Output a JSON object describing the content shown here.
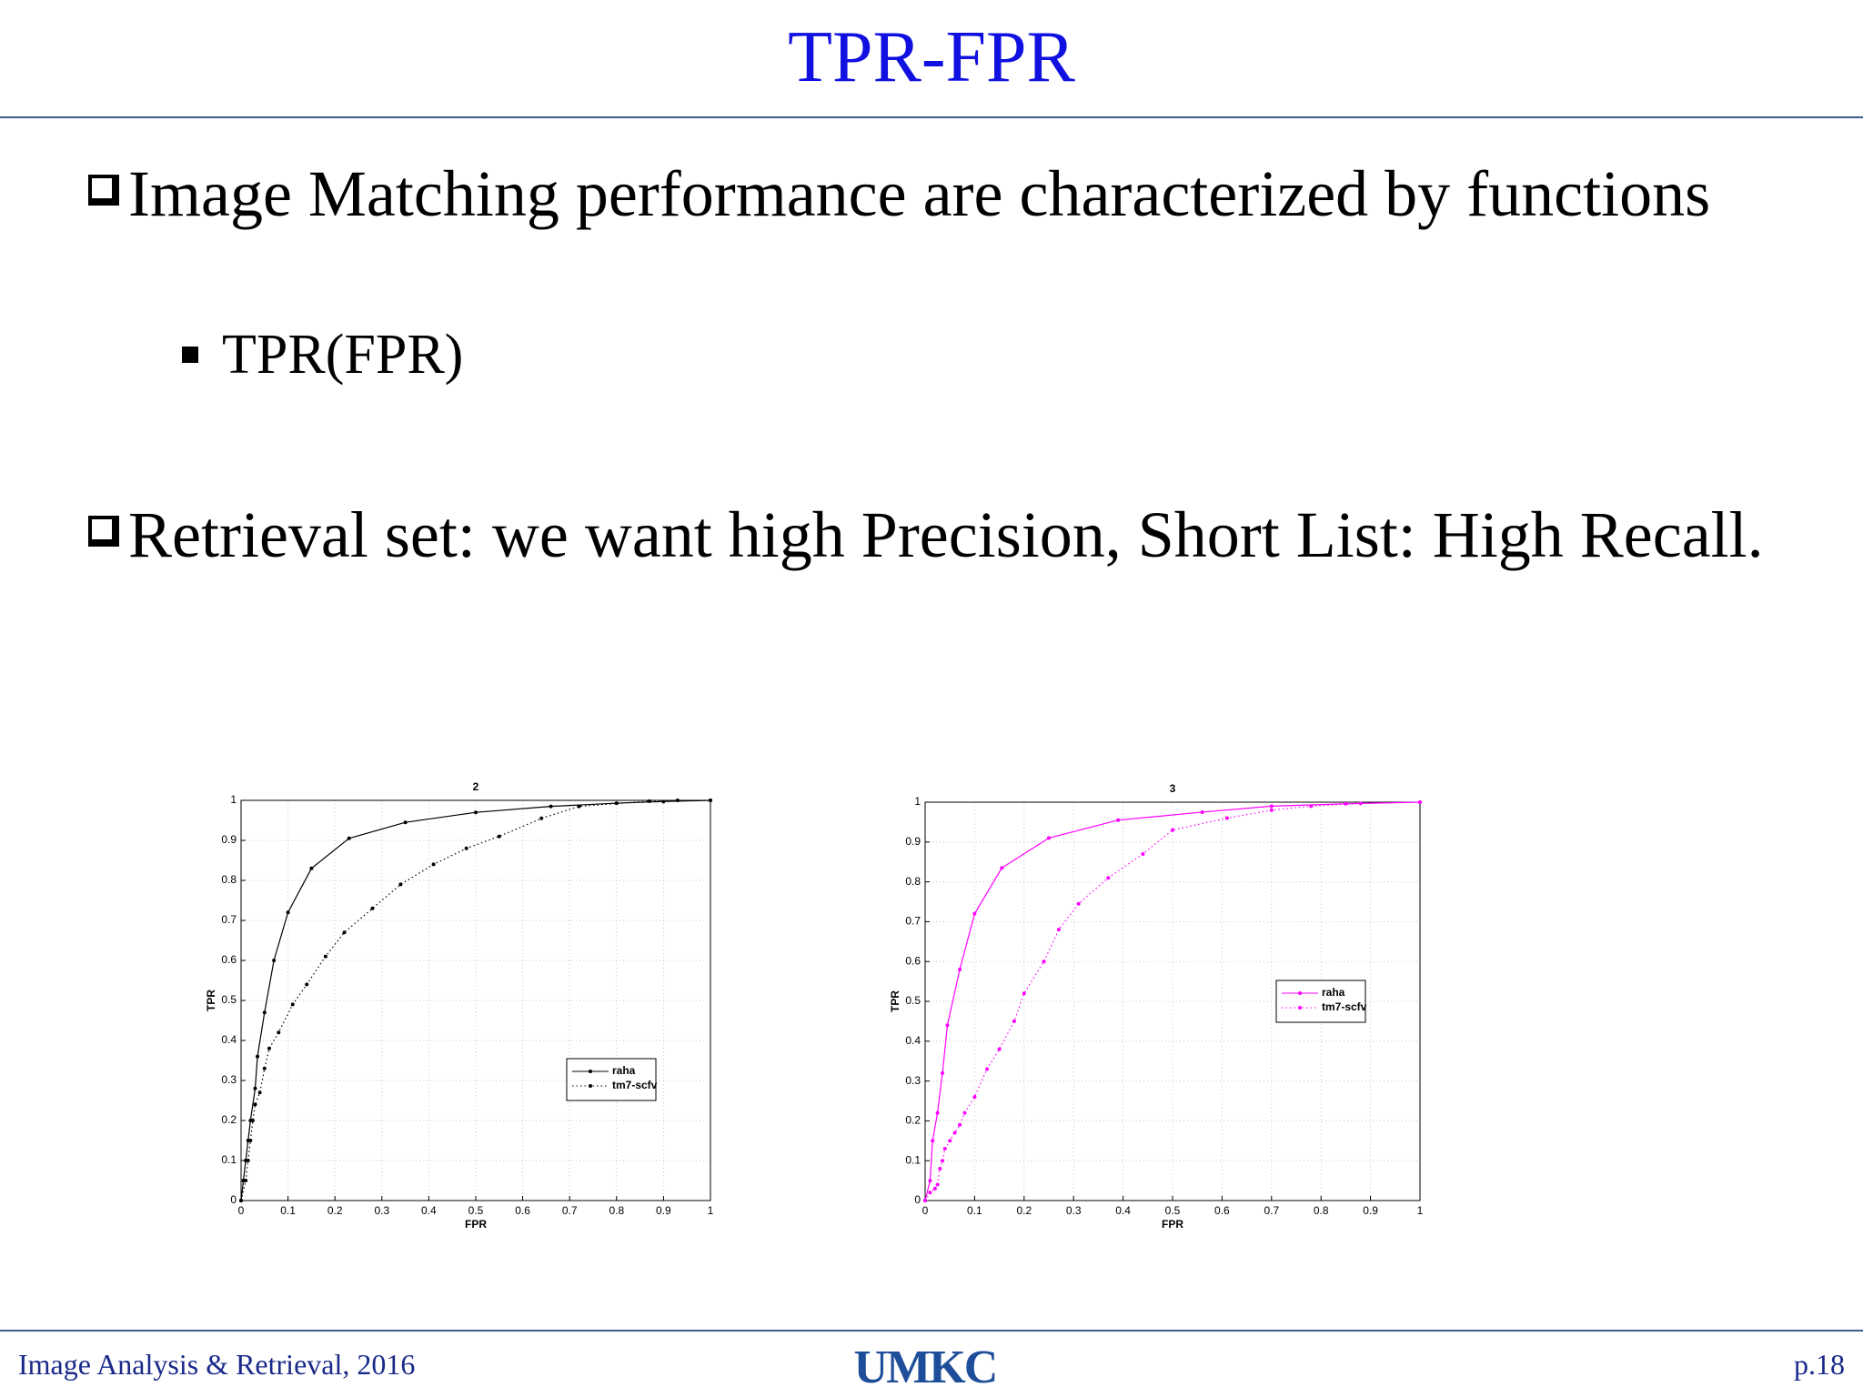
{
  "slide": {
    "title": "TPR-FPR",
    "bullets": [
      {
        "text": "Image Matching performance are characterized by functions",
        "sub": [
          "TPR(FPR)"
        ]
      },
      {
        "text": "Retrieval set: we want high Precision, Short List: High Recall."
      }
    ]
  },
  "footer": {
    "left": "Image Analysis & Retrieval, 2016",
    "logo": "UMKC",
    "page": "p.18"
  },
  "chart_data": [
    {
      "type": "line",
      "title": "2",
      "x_label": "FPR",
      "y_label": "TPR",
      "xlim": [
        0,
        1
      ],
      "ylim": [
        0,
        1
      ],
      "xticks": [
        0,
        0.1,
        0.2,
        0.3,
        0.4,
        0.5,
        0.6,
        0.7,
        0.8,
        0.9,
        1
      ],
      "yticks": [
        0,
        0.1,
        0.2,
        0.3,
        0.4,
        0.5,
        0.6,
        0.7,
        0.8,
        0.9,
        1
      ],
      "grid": true,
      "legend": "lower right",
      "series": [
        {
          "name": "raha",
          "color": "#000000",
          "linestyle": "solid",
          "x": [
            0,
            0.005,
            0.01,
            0.015,
            0.02,
            0.03,
            0.035,
            0.05,
            0.07,
            0.1,
            0.15,
            0.23,
            0.35,
            0.5,
            0.66,
            0.8,
            0.9,
            1
          ],
          "values": [
            0,
            0.05,
            0.1,
            0.15,
            0.2,
            0.28,
            0.36,
            0.47,
            0.6,
            0.72,
            0.83,
            0.905,
            0.945,
            0.97,
            0.985,
            0.993,
            0.997,
            1
          ]
        },
        {
          "name": "tm7-scfv",
          "color": "#000000",
          "linestyle": "dotted",
          "x": [
            0,
            0.01,
            0.015,
            0.02,
            0.025,
            0.03,
            0.04,
            0.05,
            0.06,
            0.08,
            0.11,
            0.14,
            0.18,
            0.22,
            0.28,
            0.34,
            0.41,
            0.48,
            0.55,
            0.64,
            0.72,
            0.87,
            0.93,
            1
          ],
          "values": [
            0,
            0.05,
            0.1,
            0.15,
            0.2,
            0.24,
            0.27,
            0.33,
            0.38,
            0.42,
            0.49,
            0.54,
            0.61,
            0.67,
            0.73,
            0.79,
            0.84,
            0.88,
            0.91,
            0.955,
            0.985,
            0.998,
            1,
            1
          ]
        }
      ]
    },
    {
      "type": "line",
      "title": "3",
      "x_label": "FPR",
      "y_label": "TPR",
      "xlim": [
        0,
        1
      ],
      "ylim": [
        0,
        1
      ],
      "xticks": [
        0,
        0.1,
        0.2,
        0.3,
        0.4,
        0.5,
        0.6,
        0.7,
        0.8,
        0.9,
        1
      ],
      "yticks": [
        0,
        0.1,
        0.2,
        0.3,
        0.4,
        0.5,
        0.6,
        0.7,
        0.8,
        0.9,
        1
      ],
      "grid": true,
      "legend": "center right",
      "series": [
        {
          "name": "raha",
          "color": "#ff00ff",
          "linestyle": "solid",
          "x": [
            0,
            0.01,
            0.015,
            0.025,
            0.035,
            0.045,
            0.07,
            0.1,
            0.155,
            0.25,
            0.39,
            0.56,
            0.7,
            0.85,
            1
          ],
          "values": [
            0,
            0.05,
            0.15,
            0.22,
            0.32,
            0.44,
            0.58,
            0.72,
            0.835,
            0.91,
            0.955,
            0.975,
            0.99,
            0.996,
            1
          ]
        },
        {
          "name": "tm7-scfv",
          "color": "#ff00ff",
          "linestyle": "dotted",
          "x": [
            0,
            0.01,
            0.02,
            0.025,
            0.03,
            0.035,
            0.04,
            0.05,
            0.06,
            0.07,
            0.08,
            0.1,
            0.125,
            0.15,
            0.18,
            0.2,
            0.24,
            0.27,
            0.31,
            0.37,
            0.44,
            0.5,
            0.61,
            0.7,
            0.78,
            0.88,
            1
          ],
          "values": [
            0,
            0.02,
            0.03,
            0.04,
            0.08,
            0.1,
            0.13,
            0.15,
            0.17,
            0.19,
            0.22,
            0.26,
            0.33,
            0.38,
            0.45,
            0.52,
            0.6,
            0.68,
            0.745,
            0.81,
            0.87,
            0.93,
            0.96,
            0.98,
            0.99,
            0.997,
            1
          ]
        }
      ]
    }
  ]
}
